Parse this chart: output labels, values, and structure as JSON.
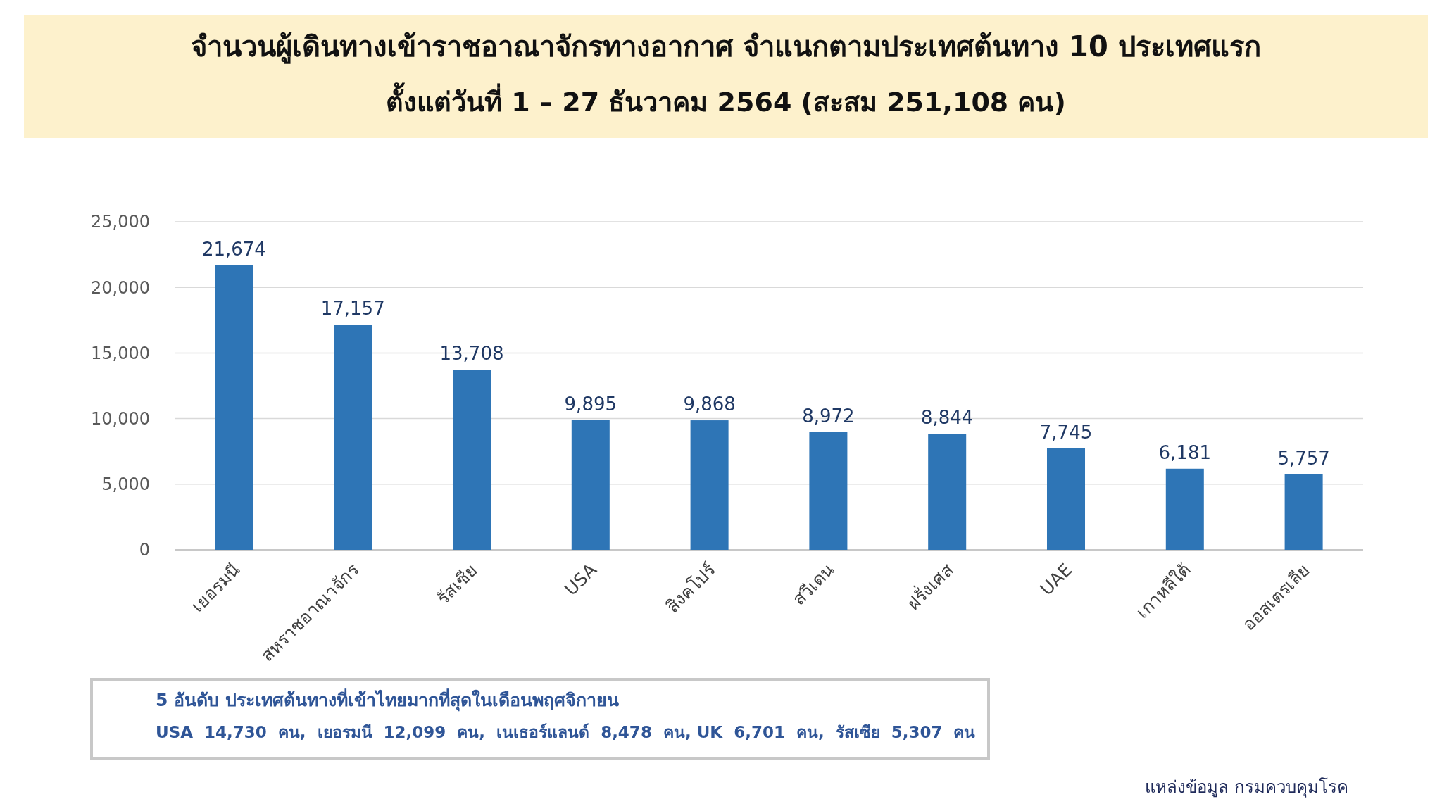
{
  "chart_data": {
    "type": "bar",
    "title": "จำนวนผู้เดินทางเข้าราชอาณาจักรทางอากาศ จำแนกตามประเทศต้นทาง 10 ประเทศแรก",
    "subtitle": "ตั้งแต่วันที่ 1 – 27  ธันวาคม 2564  (สะสม 251,108 คน)",
    "categories": [
      "เยอรมนี",
      "สหราชอาณาจักร",
      "รัสเซีย",
      "USA",
      "สิงคโปร์",
      "สวีเดน",
      "ฝรั่งเศส",
      "UAE",
      "เกาหลีใต้",
      "ออสเตรเลีย"
    ],
    "values": [
      21674,
      17157,
      13708,
      9895,
      9868,
      8972,
      8844,
      7745,
      6181,
      5757
    ],
    "color": "#2e75b6",
    "ylim": [
      0,
      25000
    ],
    "yticks": [
      {
        "value": 0,
        "label": "0"
      },
      {
        "value": 5000,
        "label": "5,000"
      },
      {
        "value": 10000,
        "label": "10,000"
      },
      {
        "value": 15000,
        "label": "15,000"
      },
      {
        "value": 20000,
        "label": "20,000"
      },
      {
        "value": 25000,
        "label": "25,000"
      }
    ],
    "value_labels": [
      "21,674",
      "17,157",
      "13,708",
      "9,895",
      "9,868",
      "8,972",
      "8,844",
      "7,745",
      "6,181",
      "5,757"
    ],
    "grid": "y",
    "annotations": [
      "5 อันดับ ประเทศต้นทางที่เข้าไทยมากที่สุดในเดือนพฤศจิกายน",
      "USA  14,730  คน,  เยอรมนี  12,099  คน,  เนเธอร์แลนด์  8,478  คน, UK  6,701  คน,  รัสเซีย  5,307  คน",
      "แหล่งข้อมูล กรมควบคุมโรค"
    ]
  }
}
